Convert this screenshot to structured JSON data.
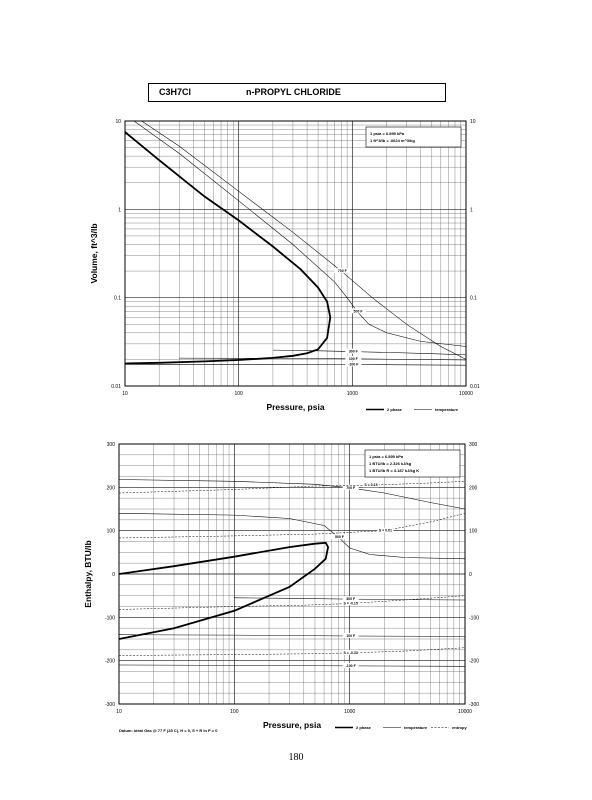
{
  "header": {
    "formula": "C3H7Cl",
    "name": "n-PROPYL CHLORIDE"
  },
  "page_number": "180",
  "colors": {
    "ink": "#000000",
    "grid": "#555555",
    "background": "#ffffff"
  },
  "chart_data": [
    {
      "type": "line",
      "title": "",
      "xlabel": "Pressure,  psia",
      "ylabel": "Volume, ft^3/lb",
      "xscale": "log",
      "yscale": "log",
      "xlim": [
        10,
        10000
      ],
      "ylim": [
        0.01,
        10
      ],
      "xticks": [
        "10",
        "100",
        "1000",
        "10000"
      ],
      "yticks": [
        "0.01",
        "0.1",
        "1",
        "10"
      ],
      "yticks_right": [
        "0.01",
        "0.1",
        "1",
        "10"
      ],
      "grid": true,
      "legend_position": "bottom-right",
      "legend": [
        "2 phase",
        "temperature"
      ],
      "notes": [
        "1 psia  =  6.895 kPa",
        "1 ft^3/lb  =  .0624 m^3/kg"
      ],
      "series": [
        {
          "style": "2 phase",
          "x": [
            10,
            20,
            50,
            100,
            200,
            350,
            500,
            600,
            640,
            600,
            500,
            400,
            300,
            200,
            100,
            50,
            20,
            10
          ],
          "y": [
            7.5,
            3.6,
            1.4,
            0.75,
            0.38,
            0.21,
            0.13,
            0.09,
            0.06,
            0.035,
            0.026,
            0.0235,
            0.022,
            0.0208,
            0.0197,
            0.019,
            0.0183,
            0.018
          ]
        },
        {
          "label": "700 F",
          "style": "temperature",
          "x": [
            14,
            30,
            100,
            300,
            800,
            1500,
            3000,
            6000,
            10000
          ],
          "y": [
            10,
            5.2,
            1.6,
            0.55,
            0.2,
            0.1,
            0.05,
            0.028,
            0.02
          ]
        },
        {
          "label": "500 F",
          "style": "temperature",
          "x": [
            12,
            30,
            100,
            300,
            700,
            900,
            1100,
            1400,
            2000,
            4000,
            10000
          ],
          "y": [
            10,
            4.3,
            1.25,
            0.4,
            0.15,
            0.1,
            0.07,
            0.05,
            0.04,
            0.032,
            0.028
          ]
        },
        {
          "label": "300 F",
          "style": "temperature",
          "x": [
            200,
            300,
            500,
            800,
            1000,
            2000,
            5000,
            10000
          ],
          "y": [
            0.0255,
            0.0253,
            0.025,
            0.0247,
            0.0245,
            0.024,
            0.0232,
            0.0225
          ]
        },
        {
          "label": "100 F",
          "style": "temperature",
          "x": [
            30,
            100,
            300,
            1000,
            3000,
            10000
          ],
          "y": [
            0.0207,
            0.0206,
            0.0205,
            0.0203,
            0.02,
            0.0197
          ]
        },
        {
          "label": "-100 F",
          "style": "temperature",
          "x": [
            10,
            100,
            1000,
            10000
          ],
          "y": [
            0.0176,
            0.0176,
            0.0175,
            0.0172
          ]
        }
      ]
    },
    {
      "type": "line",
      "title": "",
      "xlabel": "Pressure,  psia",
      "ylabel": "Enthalpy, BTU/lb",
      "xscale": "log",
      "yscale": "linear",
      "xlim": [
        10,
        10000
      ],
      "ylim": [
        -300,
        300
      ],
      "xticks": [
        "10",
        "100",
        "1000",
        "10000"
      ],
      "yticks": [
        "-300",
        "-200",
        "-100",
        "0",
        "100",
        "200",
        "300"
      ],
      "yticks_right": [
        "-300",
        "-200",
        "-100",
        "0",
        "100",
        "200",
        "300"
      ],
      "grid": true,
      "legend_position": "bottom-right",
      "legend": [
        "2 phase",
        "temperature",
        "entropy"
      ],
      "notes": [
        "1 psia  =  6.895 kPa",
        "1 BTU/lb  =  2.326 kJ/kg",
        "1 BTU/lb R  =  4.187 kJ/kg K"
      ],
      "footnote": "Datum: Ideal Gas @ 77 F (25 C),  H = 0,  S + R ln P = 0",
      "series": [
        {
          "style": "2 phase",
          "x": [
            10,
            30,
            100,
            300,
            500,
            620,
            650,
            620,
            500,
            300,
            100,
            30,
            10
          ],
          "y": [
            0,
            18,
            40,
            62,
            70,
            72,
            62,
            35,
            12,
            -30,
            -85,
            -125,
            -150
          ]
        },
        {
          "label": "700 F",
          "style": "temperature",
          "x": [
            10,
            100,
            500,
            1000,
            2000,
            5000,
            10000
          ],
          "y": [
            218,
            214,
            207,
            199,
            187,
            165,
            150
          ]
        },
        {
          "label": "500 F",
          "style": "temperature",
          "x": [
            10,
            100,
            300,
            600,
            800,
            1000,
            1500,
            3000,
            10000
          ],
          "y": [
            140,
            136,
            128,
            112,
            85,
            60,
            45,
            38,
            35
          ]
        },
        {
          "label": "300 F",
          "style": "temperature",
          "x": [
            100,
            300,
            1000,
            3000,
            10000
          ],
          "y": [
            -55,
            -56,
            -58,
            -59,
            -60
          ]
        },
        {
          "label": "100 F",
          "style": "temperature",
          "x": [
            10,
            100,
            1000,
            10000
          ],
          "y": [
            -140,
            -141,
            -143,
            -144
          ]
        },
        {
          "label": "-100 F",
          "style": "temperature",
          "x": [
            10,
            100,
            1000,
            10000
          ],
          "y": [
            -210,
            -211,
            -212,
            -213
          ]
        },
        {
          "label": "S = 0.15",
          "style": "entropy",
          "x": [
            10,
            100,
            500,
            1500,
            5000,
            10000
          ],
          "y": [
            187,
            195,
            203,
            205,
            210,
            214
          ]
        },
        {
          "label": "S = 0.01",
          "style": "entropy",
          "x": [
            10,
            100,
            500,
            2000,
            5000,
            10000
          ],
          "y": [
            83,
            88,
            92,
            100,
            120,
            140
          ]
        },
        {
          "label": "S = -0.15",
          "style": "entropy",
          "x": [
            10,
            100,
            400,
            1000,
            3000,
            10000
          ],
          "y": [
            -82,
            -75,
            -72,
            -68,
            -60,
            -50
          ]
        },
        {
          "label": "S = -0.33",
          "style": "entropy",
          "x": [
            10,
            100,
            500,
            1000,
            3000,
            10000
          ],
          "y": [
            -188,
            -186,
            -184,
            -182,
            -178,
            -170
          ]
        }
      ]
    }
  ]
}
